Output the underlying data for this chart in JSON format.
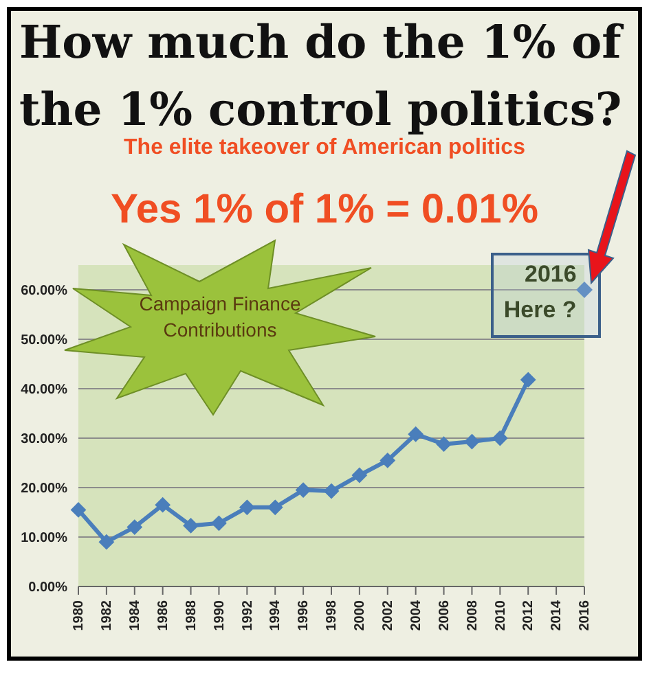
{
  "chart_data": {
    "type": "line",
    "title": "How much do the 1% of the 1% control politics?",
    "subtitle": "The elite takeover of American politics",
    "annotations": [
      "Yes 1% of 1% = 0.01%",
      "Campaign Finance Contributions",
      {
        "text": "2016 Here ?",
        "x": "2016",
        "y": 60
      }
    ],
    "categories": [
      "1980",
      "1982",
      "1984",
      "1986",
      "1988",
      "1990",
      "1992",
      "1994",
      "1996",
      "1998",
      "2000",
      "2002",
      "2004",
      "2006",
      "2008",
      "2010",
      "2012",
      "2014",
      "2016"
    ],
    "series": [
      {
        "color": "#4a7ebb",
        "values": [
          15.5,
          9,
          12,
          16.5,
          12.3,
          12.8,
          16,
          16,
          19.5,
          19.3,
          22.5,
          25.5,
          30.8,
          28.8,
          29.3,
          30,
          41.8,
          null,
          null
        ]
      },
      {
        "type": "scatter",
        "color": "#4a7ebb",
        "values": [
          null,
          null,
          null,
          null,
          null,
          null,
          null,
          null,
          null,
          null,
          null,
          null,
          null,
          null,
          null,
          null,
          null,
          null,
          60
        ]
      }
    ],
    "ylim": [
      0,
      65
    ],
    "yticks": [
      {
        "value": 0,
        "label": "0.00%"
      },
      {
        "value": 10,
        "label": "10.00%"
      },
      {
        "value": 20,
        "label": "20.00%"
      },
      {
        "value": 30,
        "label": "30.00%"
      },
      {
        "value": 40,
        "label": "40.00%"
      },
      {
        "value": 50,
        "label": "50.00%"
      },
      {
        "value": 60,
        "label": "60.00%"
      }
    ],
    "grid": "y",
    "marker": "diamond"
  }
}
